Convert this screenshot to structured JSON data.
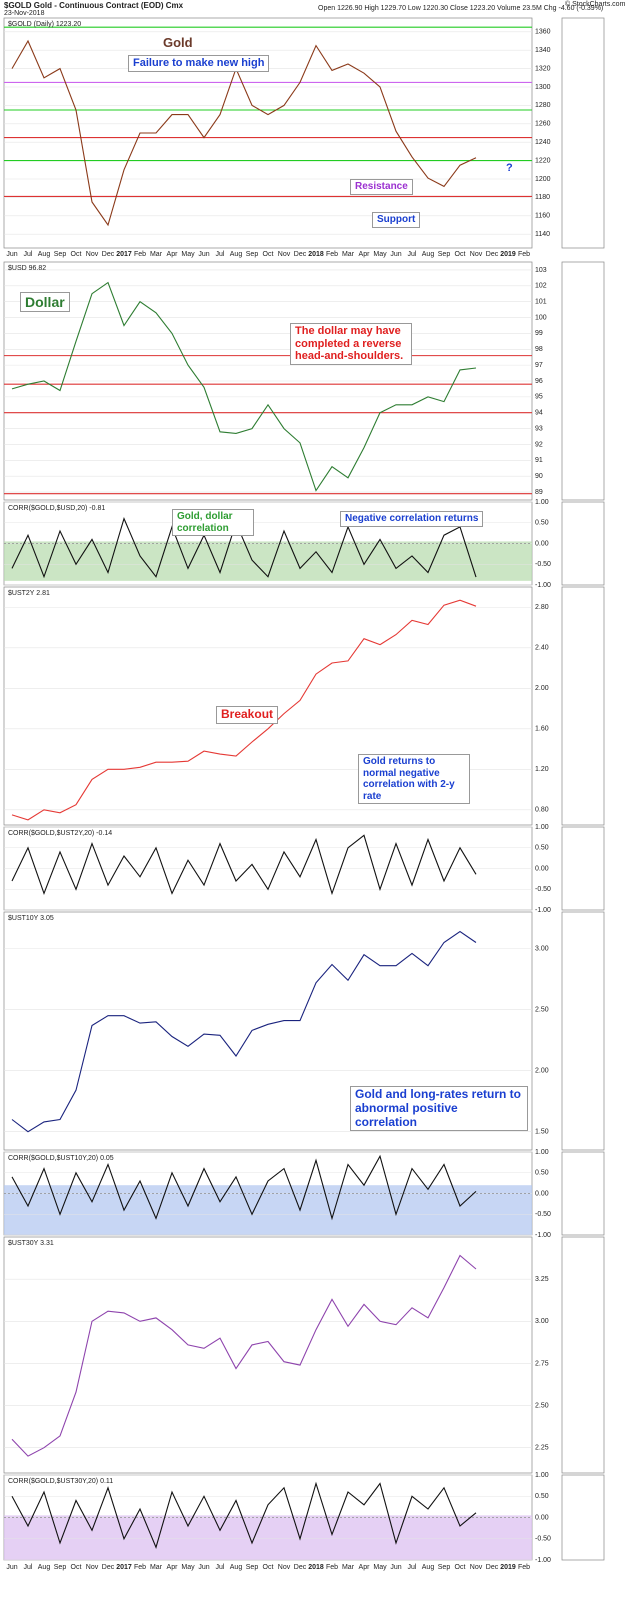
{
  "header": {
    "symbol": "$GOLD Gold - Continuous Contract (EOD) Cmx",
    "date": "23-Nov-2018",
    "quote": "Open 1226.90  High 1229.70  Low 1220.30  Close 1223.20  Volume 23.5M  Chg -4.60 (-0.39%)",
    "source": "© StockCharts.com"
  },
  "chart_data": [
    {
      "type": "line",
      "title": "$GOLD (Daily) 1223.20",
      "categories": [
        "Jun",
        "Jul",
        "Aug",
        "Sep",
        "Oct",
        "Nov",
        "Dec",
        "2017",
        "Feb",
        "Mar",
        "Apr",
        "May",
        "Jun",
        "Jul",
        "Aug",
        "Sep",
        "Oct",
        "Nov",
        "Dec",
        "2018",
        "Feb",
        "Mar",
        "Apr",
        "May",
        "Jun",
        "Jul",
        "Aug",
        "Sep",
        "Oct",
        "Nov",
        "Dec",
        "2019",
        "Feb"
      ],
      "series": [
        {
          "name": "$GOLD (Daily) 1223.20",
          "color": "#8b3a1a",
          "values": [
            1320,
            1350,
            1310,
            1320,
            1275,
            1175,
            1150,
            1210,
            1250,
            1250,
            1270,
            1270,
            1245,
            1270,
            1320,
            1280,
            1270,
            1280,
            1305,
            1345,
            1318,
            1325,
            1315,
            1300,
            1252,
            1224,
            1201,
            1192,
            1215,
            1223,
            null,
            null,
            null
          ]
        }
      ],
      "ylim": [
        1125,
        1375
      ],
      "yticks": [
        1140,
        1160,
        1180,
        1200,
        1220,
        1240,
        1260,
        1280,
        1300,
        1320,
        1340,
        1360
      ],
      "hlines": [
        {
          "value": 1365,
          "color": "#22cc22"
        },
        {
          "value": 1275,
          "color": "#22cc22"
        },
        {
          "value": 1220,
          "color": "#22cc22"
        },
        {
          "value": 1245,
          "color": "#dd3333"
        },
        {
          "value": 1181,
          "color": "#dd3333"
        },
        {
          "value": 1305,
          "color": "#cc66ee"
        }
      ],
      "annotations": [
        {
          "text": "Gold",
          "color": "#6b3a2a"
        },
        {
          "text": "Failure to make new high",
          "color": "#1a3fd0"
        },
        {
          "text": "Resistance",
          "color": "#9b30d0"
        },
        {
          "text": "Support",
          "color": "#1a3fd0"
        },
        {
          "text": "?",
          "color": "#1a3fd0"
        }
      ]
    },
    {
      "type": "line",
      "title": "$USD 96.82",
      "series": [
        {
          "name": "$USD 96.82",
          "color": "#2e7d32",
          "values": [
            95.5,
            95.8,
            96,
            95.4,
            98.5,
            101.5,
            102.2,
            99.5,
            101,
            100.3,
            99,
            97,
            95.6,
            92.8,
            92.7,
            93,
            94.5,
            93,
            92.1,
            89.1,
            90.6,
            89.9,
            91.8,
            94,
            94.5,
            94.5,
            95,
            94.7,
            96.7,
            96.82,
            null,
            null,
            null
          ]
        }
      ],
      "ylim": [
        88.5,
        103.5
      ],
      "yticks": [
        89,
        90,
        91,
        92,
        93,
        94,
        95,
        96,
        97,
        98,
        99,
        100,
        101,
        102,
        103
      ],
      "hlines": [
        {
          "value": 97.6,
          "color": "#dd3333"
        },
        {
          "value": 95.8,
          "color": "#dd3333"
        },
        {
          "value": 94,
          "color": "#dd3333"
        },
        {
          "value": 88.9,
          "color": "#dd3333"
        }
      ],
      "annotations": [
        {
          "text": "Dollar",
          "color": "#2e7d32"
        },
        {
          "text": "The dollar may have completed a reverse head-and-shoulders.",
          "color": "#e02020"
        }
      ]
    },
    {
      "type": "line",
      "title": "CORR($GOLD,$USD,20) -0.81",
      "series": [
        {
          "name": "CORR($GOLD,$USD,20) -0.81",
          "color": "#111111",
          "values": [
            -0.6,
            0.2,
            -0.8,
            0.3,
            -0.5,
            0.1,
            -0.7,
            0.6,
            -0.3,
            -0.8,
            0.4,
            -0.6,
            0.2,
            -0.7,
            0.5,
            -0.4,
            -0.8,
            0.3,
            -0.6,
            -0.2,
            -0.7,
            0.4,
            -0.5,
            0.1,
            -0.6,
            -0.3,
            -0.7,
            0.2,
            0.4,
            -0.81,
            null,
            null,
            null
          ]
        }
      ],
      "ylim": [
        -1,
        1
      ],
      "yticks": [
        {
          "value": -1,
          "label": "-1.00"
        },
        {
          "value": -0.5,
          "label": "-0.50"
        },
        {
          "value": 0,
          "label": "0.00"
        },
        {
          "value": 0.5,
          "label": "0.50"
        },
        {
          "value": 1,
          "label": "1.00"
        }
      ],
      "band": {
        "from": -0.9,
        "to": 0.05,
        "color": "#b9dcb0"
      },
      "annotations": [
        {
          "text": "Gold, dollar correlation",
          "color": "#2e9d32"
        },
        {
          "text": "Negative correlation returns",
          "color": "#1a3fd0"
        }
      ]
    },
    {
      "type": "line",
      "title": "$UST2Y 2.81",
      "series": [
        {
          "name": "$UST2Y 2.81",
          "color": "#e53935",
          "values": [
            0.75,
            0.7,
            0.8,
            0.77,
            0.85,
            1.1,
            1.2,
            1.2,
            1.22,
            1.27,
            1.27,
            1.28,
            1.38,
            1.35,
            1.33,
            1.47,
            1.6,
            1.75,
            1.88,
            2.14,
            2.25,
            2.27,
            2.49,
            2.43,
            2.53,
            2.67,
            2.63,
            2.82,
            2.87,
            2.81,
            null,
            null,
            null
          ]
        }
      ],
      "ylim": [
        0.65,
        3.0
      ],
      "yticks": [
        {
          "value": 0.8,
          "label": "0.80"
        },
        {
          "value": 1.2,
          "label": "1.20"
        },
        {
          "value": 1.6,
          "label": "1.60"
        },
        {
          "value": 2,
          "label": "2.00"
        },
        {
          "value": 2.4,
          "label": "2.40"
        },
        {
          "value": 2.8,
          "label": "2.80"
        }
      ],
      "annotations": [
        {
          "text": "Breakout",
          "color": "#e02020"
        },
        {
          "text": "Gold returns to normal negative correlation with 2-y rate",
          "color": "#1a3fd0"
        }
      ]
    },
    {
      "type": "line",
      "title": "CORR($GOLD,$UST2Y,20) -0.14",
      "series": [
        {
          "name": "CORR($GOLD,$UST2Y,20) -0.14",
          "color": "#111111",
          "values": [
            -0.3,
            0.5,
            -0.6,
            0.4,
            -0.5,
            0.6,
            -0.4,
            0.3,
            -0.2,
            0.5,
            -0.6,
            0.2,
            -0.4,
            0.6,
            -0.3,
            0.1,
            -0.5,
            0.4,
            -0.2,
            0.7,
            -0.6,
            0.5,
            0.8,
            -0.5,
            0.6,
            -0.4,
            0.7,
            -0.3,
            0.5,
            -0.14,
            null,
            null,
            null
          ]
        }
      ],
      "ylim": [
        -1,
        1
      ],
      "yticks": [
        {
          "value": -1,
          "label": "-1.00"
        },
        {
          "value": -0.5,
          "label": "-0.50"
        },
        {
          "value": 0,
          "label": "0.00"
        },
        {
          "value": 0.5,
          "label": "0.50"
        },
        {
          "value": 1,
          "label": "1.00"
        }
      ],
      "annotations": []
    },
    {
      "type": "line",
      "title": "$UST10Y 3.05",
      "series": [
        {
          "name": "$UST10Y 3.05",
          "color": "#1a237e",
          "values": [
            1.6,
            1.5,
            1.58,
            1.6,
            1.84,
            2.37,
            2.45,
            2.45,
            2.39,
            2.4,
            2.28,
            2.2,
            2.3,
            2.29,
            2.12,
            2.33,
            2.38,
            2.41,
            2.41,
            2.72,
            2.87,
            2.74,
            2.95,
            2.86,
            2.86,
            2.96,
            2.86,
            3.05,
            3.14,
            3.05,
            null,
            null,
            null
          ]
        }
      ],
      "ylim": [
        1.35,
        3.3
      ],
      "yticks": [
        {
          "value": 1.5,
          "label": "1.50"
        },
        {
          "value": 2,
          "label": "2.00"
        },
        {
          "value": 2.5,
          "label": "2.50"
        },
        {
          "value": 3,
          "label": "3.00"
        }
      ],
      "annotations": [
        {
          "text": "Gold and long-rates return to abnormal positive correlation",
          "color": "#1a3fd0"
        }
      ]
    },
    {
      "type": "line",
      "title": "CORR($GOLD,$UST10Y,20) 0.05",
      "series": [
        {
          "name": "CORR($GOLD,$UST10Y,20) 0.05",
          "color": "#111111",
          "values": [
            0.4,
            -0.3,
            0.6,
            -0.5,
            0.5,
            -0.2,
            0.7,
            -0.4,
            0.3,
            -0.6,
            0.5,
            -0.3,
            0.6,
            -0.2,
            0.4,
            -0.5,
            0.3,
            0.6,
            -0.4,
            0.8,
            -0.6,
            0.7,
            0.2,
            0.9,
            -0.5,
            0.6,
            0.1,
            0.7,
            -0.3,
            0.05,
            null,
            null,
            null
          ]
        }
      ],
      "ylim": [
        -1,
        1
      ],
      "yticks": [
        {
          "value": -1,
          "label": "-1.00"
        },
        {
          "value": -0.5,
          "label": "-0.50"
        },
        {
          "value": 0,
          "label": "0.00"
        },
        {
          "value": 0.5,
          "label": "0.50"
        },
        {
          "value": 1,
          "label": "1.00"
        }
      ],
      "band": {
        "from": -1,
        "to": 0.2,
        "color": "#b4c8f0"
      },
      "annotations": []
    },
    {
      "type": "line",
      "title": "$UST30Y 3.31",
      "series": [
        {
          "name": "$UST30Y 3.31",
          "color": "#8e44ad",
          "values": [
            2.3,
            2.2,
            2.25,
            2.32,
            2.58,
            3.0,
            3.06,
            3.05,
            3.0,
            3.02,
            2.95,
            2.86,
            2.84,
            2.9,
            2.72,
            2.86,
            2.88,
            2.76,
            2.74,
            2.95,
            3.13,
            2.97,
            3.1,
            3.0,
            2.98,
            3.08,
            3.02,
            3.2,
            3.39,
            3.31,
            null,
            null,
            null
          ]
        }
      ],
      "ylim": [
        2.1,
        3.5
      ],
      "yticks": [
        {
          "value": 2.25,
          "label": "2.25"
        },
        {
          "value": 2.5,
          "label": "2.50"
        },
        {
          "value": 2.75,
          "label": "2.75"
        },
        {
          "value": 3,
          "label": "3.00"
        },
        {
          "value": 3.25,
          "label": "3.25"
        }
      ],
      "annotations": []
    },
    {
      "type": "line",
      "title": "CORR($GOLD,$UST30Y,20) 0.11",
      "series": [
        {
          "name": "CORR($GOLD,$UST30Y,20) 0.11",
          "color": "#111111",
          "values": [
            0.5,
            -0.2,
            0.6,
            -0.6,
            0.4,
            -0.3,
            0.7,
            -0.5,
            0.2,
            -0.7,
            0.6,
            -0.2,
            0.5,
            -0.3,
            0.4,
            -0.6,
            0.3,
            0.7,
            -0.5,
            0.8,
            -0.4,
            0.6,
            0.3,
            0.8,
            -0.6,
            0.5,
            0.2,
            0.7,
            -0.2,
            0.11,
            null,
            null,
            null
          ]
        }
      ],
      "ylim": [
        -1,
        1
      ],
      "yticks": [
        {
          "value": -1,
          "label": "-1.00"
        },
        {
          "value": -0.5,
          "label": "-0.50"
        },
        {
          "value": 0,
          "label": "0.00"
        },
        {
          "value": 0.5,
          "label": "0.50"
        },
        {
          "value": 1,
          "label": "1.00"
        }
      ],
      "band": {
        "from": -1,
        "to": 0.05,
        "color": "#dcc0f0"
      },
      "annotations": []
    }
  ]
}
